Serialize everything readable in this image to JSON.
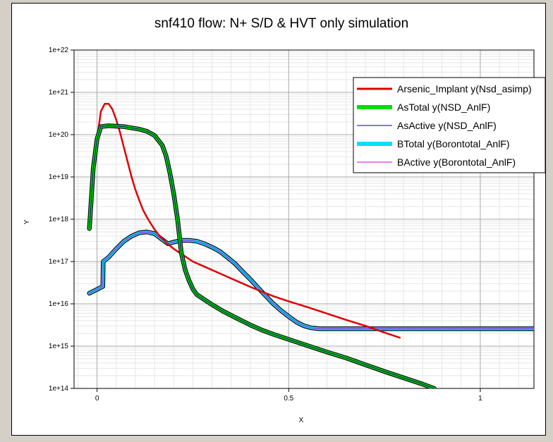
{
  "chart_data": {
    "type": "line",
    "title": "snf410 flow: N+ S/D & HVT only simulation",
    "xlabel": "X",
    "ylabel": "Y",
    "xlim": [
      -0.06,
      1.14
    ],
    "ylim_exp": [
      14,
      22
    ],
    "yscale": "log",
    "x_ticks": [
      {
        "value": 0,
        "label": "0"
      },
      {
        "value": 0.5,
        "label": "0.5"
      },
      {
        "value": 1,
        "label": "1"
      }
    ],
    "y_ticks": [
      {
        "exp": 14,
        "label": "1e+14"
      },
      {
        "exp": 15,
        "label": "1e+15"
      },
      {
        "exp": 16,
        "label": "1e+16"
      },
      {
        "exp": 17,
        "label": "1e+17"
      },
      {
        "exp": 18,
        "label": "1e+18"
      },
      {
        "exp": 19,
        "label": "1e+19"
      },
      {
        "exp": 20,
        "label": "1e+20"
      },
      {
        "exp": 21,
        "label": "1e+21"
      },
      {
        "exp": 22,
        "label": "1e+22"
      }
    ],
    "grid": true,
    "legend_position": "top-right",
    "series": [
      {
        "name": "Arsenic_Implant y(Nsd_asimp)",
        "color": "#e00000",
        "points": [
          [
            0.0,
            19.9
          ],
          [
            0.01,
            20.55
          ],
          [
            0.02,
            20.73
          ],
          [
            0.03,
            20.73
          ],
          [
            0.04,
            20.6
          ],
          [
            0.05,
            20.35
          ],
          [
            0.06,
            20.05
          ],
          [
            0.07,
            19.7
          ],
          [
            0.08,
            19.35
          ],
          [
            0.09,
            19.0
          ],
          [
            0.1,
            18.7
          ],
          [
            0.11,
            18.45
          ],
          [
            0.12,
            18.22
          ],
          [
            0.13,
            18.05
          ],
          [
            0.14,
            17.9
          ],
          [
            0.15,
            17.76
          ],
          [
            0.16,
            17.64
          ],
          [
            0.18,
            17.45
          ],
          [
            0.2,
            17.3
          ],
          [
            0.22,
            17.18
          ],
          [
            0.25,
            17.0
          ],
          [
            0.28,
            16.88
          ],
          [
            0.31,
            16.76
          ],
          [
            0.34,
            16.64
          ],
          [
            0.37,
            16.52
          ],
          [
            0.4,
            16.4
          ],
          [
            0.43,
            16.29
          ],
          [
            0.46,
            16.18
          ],
          [
            0.5,
            16.06
          ],
          [
            0.55,
            15.92
          ],
          [
            0.6,
            15.77
          ],
          [
            0.65,
            15.62
          ],
          [
            0.7,
            15.48
          ],
          [
            0.75,
            15.32
          ],
          [
            0.79,
            15.2
          ]
        ]
      },
      {
        "name": "AsTotal y(NSD_AnlF)",
        "color": "#00e000",
        "points": [
          [
            -0.02,
            17.78
          ],
          [
            -0.01,
            19.2
          ],
          [
            0.0,
            19.9
          ],
          [
            0.01,
            20.19
          ],
          [
            0.03,
            20.21
          ],
          [
            0.05,
            20.2
          ],
          [
            0.07,
            20.19
          ],
          [
            0.09,
            20.16
          ],
          [
            0.11,
            20.13
          ],
          [
            0.13,
            20.08
          ],
          [
            0.15,
            19.98
          ],
          [
            0.17,
            19.75
          ],
          [
            0.18,
            19.5
          ],
          [
            0.19,
            19.1
          ],
          [
            0.2,
            18.6
          ],
          [
            0.21,
            18.0
          ],
          [
            0.215,
            17.6
          ],
          [
            0.22,
            17.2
          ],
          [
            0.23,
            16.8
          ],
          [
            0.24,
            16.55
          ],
          [
            0.25,
            16.35
          ],
          [
            0.26,
            16.22
          ],
          [
            0.28,
            16.1
          ],
          [
            0.3,
            15.98
          ],
          [
            0.33,
            15.82
          ],
          [
            0.36,
            15.68
          ],
          [
            0.4,
            15.5
          ],
          [
            0.43,
            15.38
          ],
          [
            0.46,
            15.28
          ],
          [
            0.5,
            15.16
          ],
          [
            0.55,
            15.01
          ],
          [
            0.6,
            14.86
          ],
          [
            0.65,
            14.72
          ],
          [
            0.7,
            14.56
          ],
          [
            0.75,
            14.4
          ],
          [
            0.8,
            14.25
          ],
          [
            0.85,
            14.1
          ],
          [
            0.88,
            14.0
          ]
        ]
      },
      {
        "name": "AsActive y(NSD_AnlF)",
        "color": "#000080",
        "points": [
          [
            -0.02,
            17.78
          ],
          [
            -0.01,
            19.2
          ],
          [
            0.0,
            19.9
          ],
          [
            0.01,
            20.19
          ],
          [
            0.03,
            20.21
          ],
          [
            0.05,
            20.2
          ],
          [
            0.07,
            20.19
          ],
          [
            0.09,
            20.16
          ],
          [
            0.11,
            20.13
          ],
          [
            0.13,
            20.08
          ],
          [
            0.15,
            19.98
          ],
          [
            0.17,
            19.75
          ],
          [
            0.18,
            19.5
          ],
          [
            0.19,
            19.1
          ],
          [
            0.2,
            18.6
          ],
          [
            0.21,
            18.0
          ],
          [
            0.215,
            17.6
          ],
          [
            0.22,
            17.2
          ],
          [
            0.23,
            16.8
          ],
          [
            0.24,
            16.55
          ],
          [
            0.25,
            16.35
          ],
          [
            0.26,
            16.22
          ],
          [
            0.28,
            16.1
          ],
          [
            0.3,
            15.98
          ],
          [
            0.33,
            15.82
          ],
          [
            0.36,
            15.68
          ],
          [
            0.4,
            15.5
          ],
          [
            0.43,
            15.38
          ],
          [
            0.46,
            15.28
          ],
          [
            0.5,
            15.16
          ],
          [
            0.55,
            15.01
          ],
          [
            0.6,
            14.86
          ],
          [
            0.65,
            14.72
          ],
          [
            0.7,
            14.56
          ],
          [
            0.75,
            14.4
          ],
          [
            0.8,
            14.25
          ],
          [
            0.85,
            14.1
          ],
          [
            0.88,
            14.0
          ]
        ]
      },
      {
        "name": "BTotal y(Borontotal_AnlF)",
        "color": "#00e0ff",
        "points": [
          [
            -0.02,
            16.25
          ],
          [
            0.015,
            16.41
          ],
          [
            0.016,
            17.0
          ],
          [
            0.03,
            17.1
          ],
          [
            0.05,
            17.3
          ],
          [
            0.07,
            17.48
          ],
          [
            0.09,
            17.6
          ],
          [
            0.11,
            17.68
          ],
          [
            0.13,
            17.7
          ],
          [
            0.15,
            17.66
          ],
          [
            0.17,
            17.52
          ],
          [
            0.185,
            17.42
          ],
          [
            0.2,
            17.46
          ],
          [
            0.22,
            17.5
          ],
          [
            0.24,
            17.5
          ],
          [
            0.26,
            17.48
          ],
          [
            0.28,
            17.42
          ],
          [
            0.3,
            17.34
          ],
          [
            0.32,
            17.24
          ],
          [
            0.34,
            17.1
          ],
          [
            0.36,
            16.95
          ],
          [
            0.38,
            16.76
          ],
          [
            0.4,
            16.58
          ],
          [
            0.42,
            16.38
          ],
          [
            0.44,
            16.19
          ],
          [
            0.46,
            16.0
          ],
          [
            0.48,
            15.84
          ],
          [
            0.5,
            15.7
          ],
          [
            0.52,
            15.57
          ],
          [
            0.54,
            15.48
          ],
          [
            0.56,
            15.43
          ],
          [
            0.58,
            15.41
          ],
          [
            0.6,
            15.41
          ],
          [
            0.8,
            15.41
          ],
          [
            1.0,
            15.41
          ],
          [
            1.14,
            15.41
          ]
        ]
      },
      {
        "name": "BActive y(Borontotal_AnlF)",
        "color": "#d000d0",
        "points": [
          [
            -0.02,
            16.25
          ],
          [
            0.015,
            16.41
          ],
          [
            0.016,
            17.0
          ],
          [
            0.03,
            17.1
          ],
          [
            0.05,
            17.3
          ],
          [
            0.07,
            17.48
          ],
          [
            0.09,
            17.6
          ],
          [
            0.11,
            17.68
          ],
          [
            0.13,
            17.7
          ],
          [
            0.15,
            17.66
          ],
          [
            0.17,
            17.52
          ],
          [
            0.185,
            17.42
          ],
          [
            0.2,
            17.46
          ],
          [
            0.22,
            17.5
          ],
          [
            0.24,
            17.5
          ],
          [
            0.26,
            17.48
          ],
          [
            0.28,
            17.42
          ],
          [
            0.3,
            17.34
          ],
          [
            0.32,
            17.24
          ],
          [
            0.34,
            17.1
          ],
          [
            0.36,
            16.95
          ],
          [
            0.38,
            16.76
          ],
          [
            0.4,
            16.58
          ],
          [
            0.42,
            16.38
          ],
          [
            0.44,
            16.19
          ],
          [
            0.46,
            16.0
          ],
          [
            0.48,
            15.84
          ],
          [
            0.5,
            15.7
          ],
          [
            0.52,
            15.57
          ],
          [
            0.54,
            15.48
          ],
          [
            0.56,
            15.43
          ],
          [
            0.58,
            15.41
          ],
          [
            0.6,
            15.41
          ],
          [
            0.8,
            15.41
          ],
          [
            1.0,
            15.41
          ],
          [
            1.14,
            15.41
          ]
        ]
      }
    ]
  }
}
